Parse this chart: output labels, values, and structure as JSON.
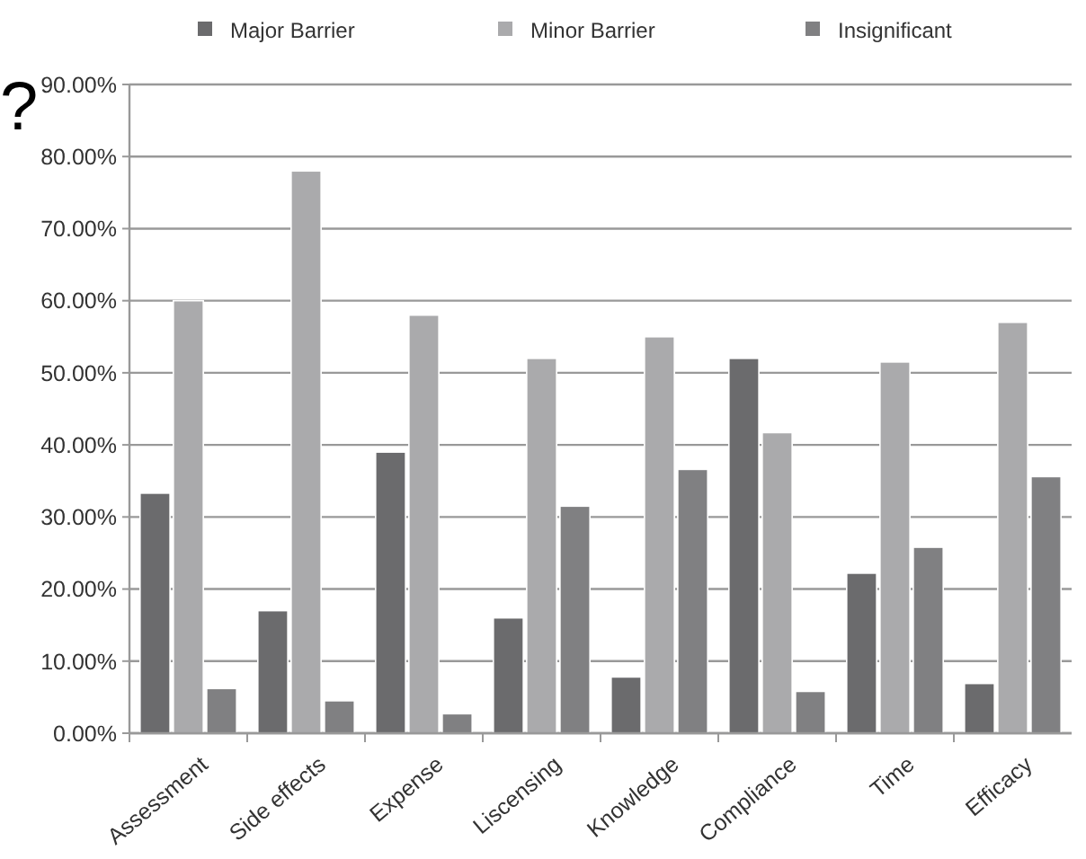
{
  "chart_data": {
    "type": "bar",
    "annotations": [
      "?"
    ],
    "categories": [
      "Assessment",
      "Side effects",
      "Expense",
      "Liscensing",
      "Knowledge",
      "Compliance",
      "Time",
      "Efficacy"
    ],
    "series": [
      {
        "name": "Major Barrier",
        "color": "#6b6b6d",
        "values": [
          33.3,
          17,
          39,
          16,
          7.8,
          52,
          22.2,
          6.9
        ]
      },
      {
        "name": "Minor Barrier",
        "color": "#aaaaac",
        "values": [
          60,
          78,
          58,
          52,
          55,
          41.7,
          51.5,
          57
        ]
      },
      {
        "name": "Insignificant",
        "color": "#808082",
        "values": [
          6.2,
          4.5,
          2.7,
          31.5,
          36.6,
          5.8,
          25.8,
          35.6
        ]
      }
    ],
    "ylim": [
      0,
      90
    ],
    "yticks": [
      {
        "value": 0,
        "label": "0.00%"
      },
      {
        "value": 10,
        "label": "10.00%"
      },
      {
        "value": 20,
        "label": "20.00%"
      },
      {
        "value": 30,
        "label": "30.00%"
      },
      {
        "value": 40,
        "label": "40.00%"
      },
      {
        "value": 50,
        "label": "50.00%"
      },
      {
        "value": 60,
        "label": "60.00%"
      },
      {
        "value": 70,
        "label": "70.00%"
      },
      {
        "value": 80,
        "label": "80.00%"
      },
      {
        "value": 90,
        "label": "90.00%"
      }
    ],
    "grid": "y",
    "legend": "top"
  }
}
